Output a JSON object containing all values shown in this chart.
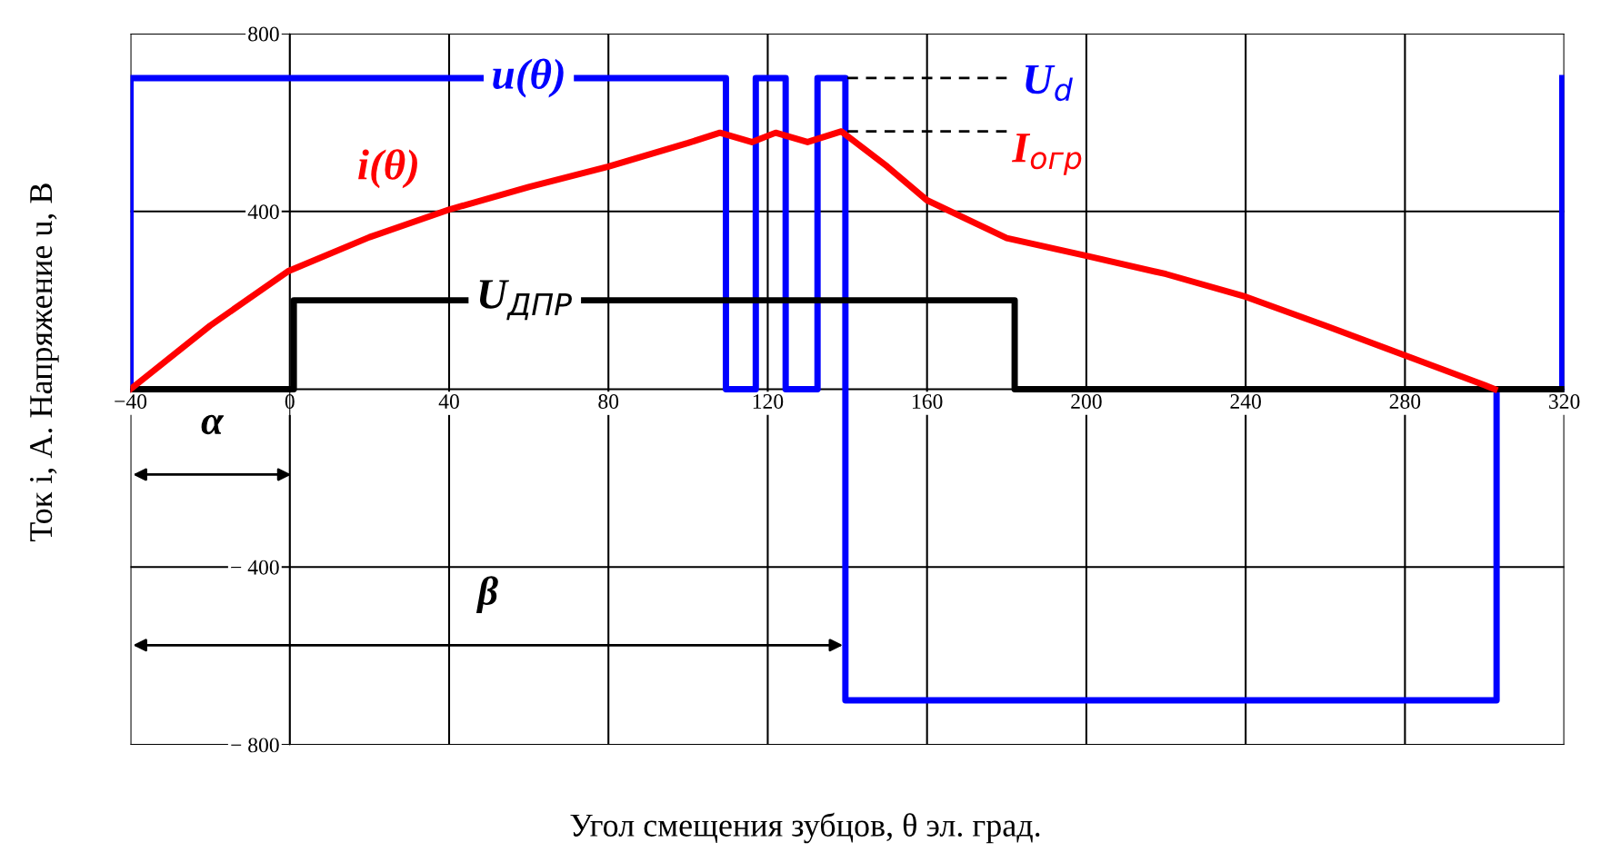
{
  "chart_data": {
    "type": "line",
    "xlabel": "Угол смещения зубцов, θ эл. град.",
    "ylabel": "Ток i, А. Напряжение u, В",
    "xlim": [
      -40,
      320
    ],
    "ylim": [
      -800,
      800
    ],
    "xticks": [
      {
        "value": -40,
        "label": "−40"
      },
      0,
      40,
      80,
      120,
      160,
      200,
      240,
      280,
      320
    ],
    "yticks": [
      800,
      400,
      {
        "value": 0,
        "label": null
      },
      {
        "value": -400,
        "label": "− 400"
      },
      {
        "value": -800,
        "label": "− 800"
      }
    ],
    "grid": true,
    "marker": "none",
    "series": [
      {
        "color": "#0000ff",
        "x": [
          -40,
          -40,
          109.5,
          109.5,
          117,
          117,
          124.5,
          124.5,
          132.5,
          132.5,
          139.5,
          139.5,
          303,
          303,
          319.5,
          319.5
        ],
        "values": [
          0,
          700,
          700,
          0,
          0,
          700,
          700,
          0,
          0,
          700,
          700,
          -700,
          -700,
          0,
          0,
          700
        ]
      },
      {
        "color": "#000000",
        "x": [
          -40,
          1,
          1,
          182,
          182,
          320
        ],
        "values": [
          0,
          0,
          200,
          200,
          0,
          0
        ]
      },
      {
        "color": "#ff0000",
        "x": [
          -40,
          -20,
          -0.5,
          20,
          40,
          60,
          80,
          100,
          108,
          116,
          122,
          130,
          138.5,
          150,
          160,
          180,
          200,
          220,
          240,
          260,
          280,
          300,
          302.5
        ],
        "values": [
          0,
          143,
          265,
          342,
          404,
          455,
          501,
          554,
          577,
          556,
          577,
          556,
          580,
          501,
          425,
          340,
          300,
          259,
          208,
          143,
          76,
          9,
          0
        ]
      },
      {
        "color": "#000000",
        "line_style": "dashed",
        "x": [
          140,
          180
        ],
        "values": [
          700,
          700
        ]
      },
      {
        "color": "#000000",
        "line_style": "dashed",
        "x": [
          140,
          180
        ],
        "values": [
          580,
          580
        ]
      }
    ],
    "annotations": [
      {
        "text": "u(θ)",
        "x": 60,
        "y": 700
      },
      "i(θ)",
      {
        "text": "U$_{ДПР}$",
        "x": 59,
        "y": 200
      },
      "U$_{d}$",
      "I$_{огр}$",
      "α",
      "β"
    ]
  }
}
